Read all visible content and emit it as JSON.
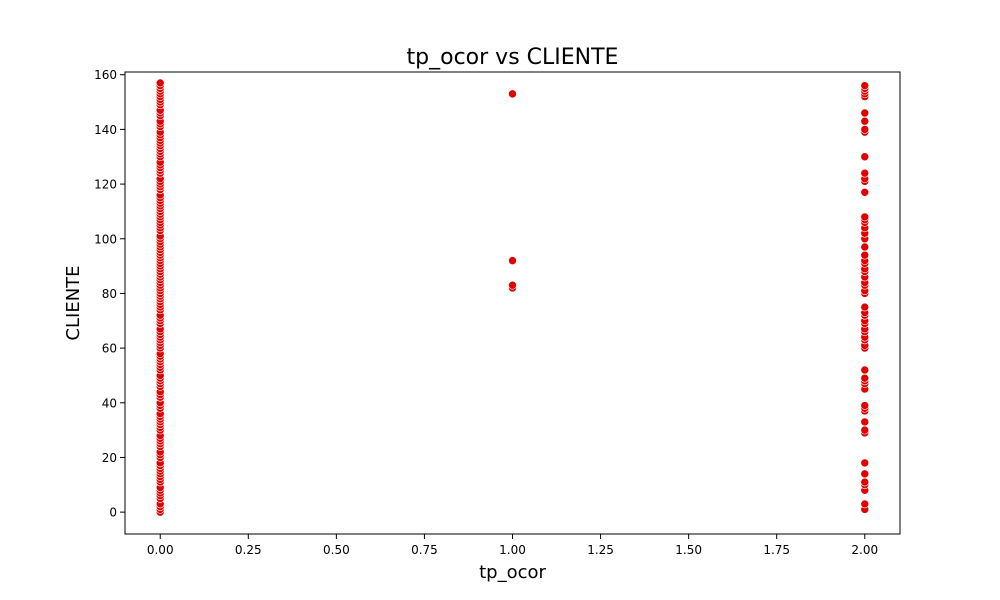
{
  "chart_data": {
    "type": "scatter",
    "title": "tp_ocor vs CLIENTE",
    "xlabel": "tp_ocor",
    "ylabel": "CLIENTE",
    "xlim": [
      -0.1,
      2.1
    ],
    "ylim": [
      -8,
      161
    ],
    "xticks": [
      0.0,
      0.25,
      0.5,
      0.75,
      1.0,
      1.25,
      1.5,
      1.75,
      2.0
    ],
    "xtick_labels": [
      "0.00",
      "0.25",
      "0.50",
      "0.75",
      "1.00",
      "1.25",
      "1.50",
      "1.75",
      "2.00"
    ],
    "yticks": [
      0,
      20,
      40,
      60,
      80,
      100,
      120,
      140,
      160
    ],
    "ytick_labels": [
      "0",
      "20",
      "40",
      "60",
      "80",
      "100",
      "120",
      "140",
      "160"
    ],
    "grid": false,
    "point_color": "#e00000",
    "series": [
      {
        "x": 0,
        "y": [
          0,
          1,
          2,
          3,
          5,
          6,
          7,
          8,
          9,
          11,
          12,
          13,
          14,
          15,
          16,
          17,
          18,
          20,
          21,
          22,
          24,
          25,
          26,
          27,
          28,
          30,
          31,
          32,
          33,
          34,
          35,
          36,
          38,
          39,
          40,
          42,
          43,
          44,
          46,
          47,
          48,
          49,
          50,
          52,
          53,
          54,
          55,
          56,
          57,
          58,
          60,
          61,
          62,
          63,
          64,
          65,
          66,
          67,
          69,
          70,
          71,
          72,
          74,
          75,
          76,
          77,
          78,
          79,
          80,
          81,
          82,
          83,
          84,
          85,
          86,
          87,
          88,
          89,
          90,
          91,
          92,
          93,
          94,
          95,
          96,
          97,
          98,
          99,
          100,
          101,
          103,
          104,
          105,
          106,
          107,
          108,
          109,
          110,
          111,
          112,
          113,
          114,
          115,
          116,
          118,
          119,
          120,
          121,
          122,
          124,
          125,
          126,
          127,
          128,
          130,
          131,
          132,
          133,
          134,
          135,
          136,
          137,
          138,
          139,
          141,
          142,
          143,
          145,
          146,
          147,
          149,
          150,
          151,
          152,
          153,
          154,
          155,
          156,
          157
        ]
      },
      {
        "x": 1,
        "y": [
          82,
          83,
          92,
          153
        ]
      },
      {
        "x": 2,
        "y": [
          1,
          3,
          8,
          10,
          11,
          14,
          18,
          29,
          30,
          33,
          37,
          38,
          39,
          45,
          47,
          48,
          49,
          52,
          60,
          61,
          63,
          64,
          66,
          67,
          69,
          70,
          72,
          73,
          75,
          80,
          81,
          83,
          84,
          86,
          88,
          89,
          91,
          92,
          94,
          97,
          100,
          102,
          104,
          106,
          107,
          108,
          117,
          121,
          122,
          124,
          130,
          139,
          140,
          143,
          146,
          152,
          153,
          154,
          155,
          156
        ]
      }
    ]
  }
}
